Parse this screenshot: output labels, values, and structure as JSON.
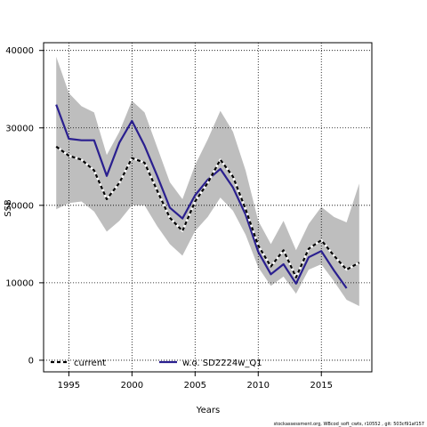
{
  "chart_data": {
    "type": "line",
    "xlabel": "Years",
    "ylabel": "SSB",
    "xlim": [
      1993,
      2019
    ],
    "ylim": [
      -1500,
      41000
    ],
    "x_ticks": [
      1995,
      2000,
      2005,
      2010,
      2015
    ],
    "x_tick_labels": [
      "1995",
      "2000",
      "2005",
      "2010",
      "2015"
    ],
    "y_ticks": [
      0,
      10000,
      20000,
      30000,
      40000
    ],
    "y_tick_labels": [
      "0",
      "10000",
      "20000",
      "30000",
      "40000"
    ],
    "grid": true,
    "legend_position": "bottom",
    "band": {
      "color": "#bebebe",
      "x": [
        1994,
        1995,
        1996,
        1997,
        1998,
        1999,
        2000,
        2001,
        2002,
        2003,
        2004,
        2005,
        2006,
        2007,
        2008,
        2009,
        2010,
        2011,
        2012,
        2013,
        2014,
        2015,
        2016,
        2017,
        2018
      ],
      "upper": [
        39200,
        34500,
        32800,
        32000,
        26500,
        29500,
        33500,
        32000,
        27500,
        23000,
        20800,
        25200,
        28500,
        32200,
        29500,
        24500,
        18000,
        15000,
        18000,
        14200,
        17600,
        19800,
        18500,
        17800,
        22800
      ],
      "lower": [
        19500,
        20300,
        20500,
        19200,
        16600,
        18000,
        20000,
        20000,
        17300,
        15000,
        13500,
        16700,
        18500,
        21000,
        19300,
        16200,
        12000,
        9600,
        10800,
        8600,
        11700,
        12400,
        10200,
        7800,
        7000
      ]
    },
    "series": [
      {
        "name": "current",
        "color": "#000000",
        "style": "dashed",
        "x": [
          1994,
          1995,
          1996,
          1997,
          1998,
          1999,
          2000,
          2001,
          2002,
          2003,
          2004,
          2005,
          2006,
          2007,
          2008,
          2009,
          2010,
          2011,
          2012,
          2013,
          2014,
          2015,
          2016,
          2017,
          2018
        ],
        "values": [
          27600,
          26400,
          25900,
          24500,
          20800,
          22900,
          26100,
          25500,
          21900,
          18400,
          16700,
          20500,
          22900,
          25900,
          23700,
          19500,
          14800,
          12100,
          14200,
          10700,
          14400,
          15500,
          13500,
          11700,
          12600
        ]
      },
      {
        "name": "w.o. SD2224w_Q1",
        "color": "#2a1f8f",
        "style": "solid",
        "x": [
          1994,
          1995,
          1996,
          1997,
          1998,
          1999,
          2000,
          2001,
          2002,
          2003,
          2004,
          2005,
          2006,
          2007,
          2008,
          2009,
          2010,
          2011,
          2012,
          2013,
          2014,
          2015,
          2016,
          2017
        ],
        "values": [
          33000,
          28600,
          28400,
          28400,
          23800,
          28100,
          30900,
          27700,
          23800,
          19700,
          18300,
          21300,
          23300,
          24700,
          22300,
          18800,
          14000,
          11100,
          12400,
          9900,
          13300,
          14100,
          11600,
          9300
        ]
      }
    ]
  },
  "footnote": "stockassessment.org, WBcod_soft_cwts, r10552 , git: 503cf91af157"
}
